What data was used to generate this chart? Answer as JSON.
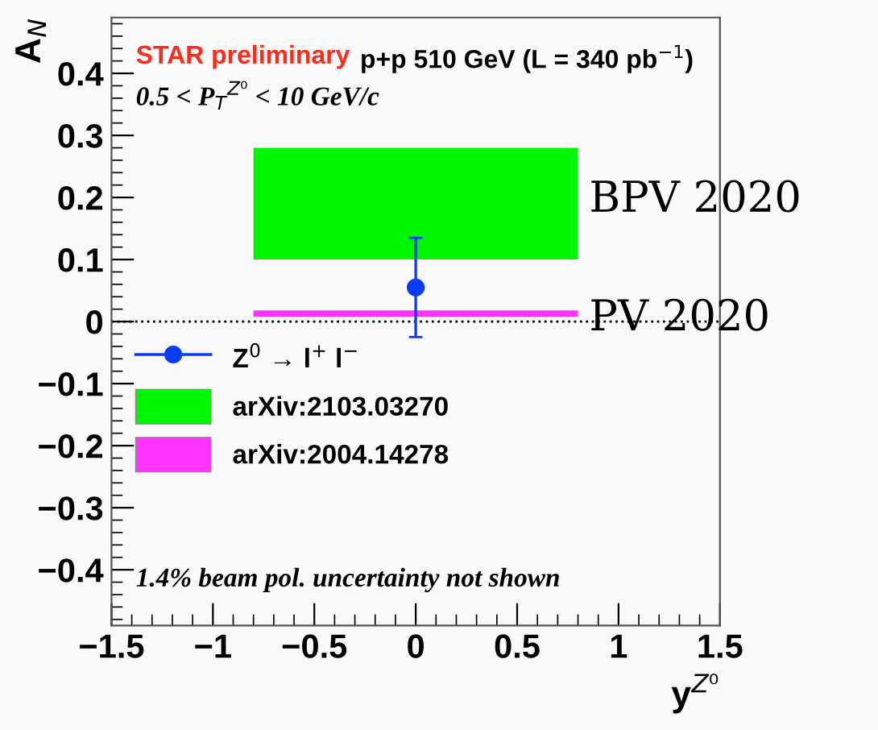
{
  "chart_data": {
    "type": "scatter",
    "title": "STAR preliminary",
    "subtitle": "p+p 510 GeV (L = 340 pb$^{−1}$)",
    "xlabel": "y$^{Z⁰}$",
    "ylabel": "A$_{N}$",
    "annotations": [
      "0.5 < P$_{T}$$^{Z⁰}$ < 10 GeV/c",
      "1.4% beam pol. uncertainty not shown",
      "BPV 2020",
      "PV 2020"
    ],
    "series": [
      {
        "name": "Z$^{0}$ → l$^{+}$ l$^{−}$",
        "color": "#0a3cf5",
        "x": [
          0
        ],
        "values": [
          0.055
        ],
        "errors": [
          0.08
        ],
        "marker": "circle"
      },
      {
        "name": "arXiv:2103.03270",
        "type": "area",
        "color": "#00f500",
        "x": [
          -0.8,
          0.8
        ],
        "values": [
          null,
          null
        ],
        "lower": [
          0.1,
          0.1
        ],
        "upper": [
          0.28,
          0.28
        ]
      },
      {
        "name": "arXiv:2004.14278",
        "type": "area",
        "color": "#ff33ff",
        "x": [
          -0.8,
          0.8
        ],
        "values": [
          null,
          null
        ],
        "lower": [
          0.008,
          0.008
        ],
        "upper": [
          0.018,
          0.018
        ]
      }
    ],
    "ref_lines": [
      {
        "axis": "y",
        "value": 0,
        "color": "#000000",
        "line_style": "dotted"
      }
    ],
    "xlim": [
      -1.5,
      1.5
    ],
    "xticks": [
      {
        "value": -1.5,
        "label": "−1.5"
      },
      {
        "value": -1,
        "label": "−1"
      },
      {
        "value": -0.5,
        "label": "−0.5"
      },
      0,
      0.5,
      1,
      1.5
    ],
    "ylim": [
      -0.49,
      0.49
    ],
    "yticks": [
      {
        "value": -0.4,
        "label": "−0.4"
      },
      {
        "value": -0.3,
        "label": "−0.3"
      },
      {
        "value": -0.2,
        "label": "−0.2"
      },
      {
        "value": -0.1,
        "label": "−0.1"
      },
      0,
      0.1,
      0.2,
      0.3,
      0.4
    ],
    "grid": false,
    "legend": "left"
  }
}
